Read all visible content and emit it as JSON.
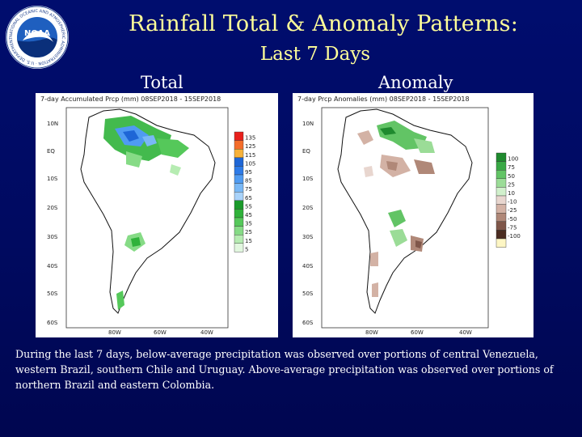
{
  "slide": {
    "title_line1": "Rainfall Total & Anomaly Patterns:",
    "title_line2": "Last 7 Days",
    "label_total": "Total",
    "label_anomaly": "Anomaly",
    "caption": "During the last 7 days, below-average precipitation was observed over portions of central Venezuela, western Brazil, southern Chile and Uruguay. Above-average precipitation was observed over portions of northern Brazil and eastern Colombia."
  },
  "logo": {
    "text": "NOAA",
    "ring_text": "NATIONAL OCEANIC AND ATMOSPHERIC ADMINISTRATION · U.S. DEPARTMENT OF COMMERCE"
  },
  "total_map": {
    "header": "7-day Accumulated Prcp (mm) 08SEP2018 - 15SEP2018",
    "lat_labels": [
      "10N",
      "EQ",
      "10S",
      "20S",
      "30S",
      "40S",
      "50S",
      "60S"
    ],
    "lon_labels": [
      "80W",
      "60W",
      "40W"
    ],
    "legend": [
      {
        "label": "135",
        "color": "#e8201c"
      },
      {
        "label": "125",
        "color": "#f46d2a"
      },
      {
        "label": "115",
        "color": "#f7b23b"
      },
      {
        "label": "105",
        "color": "#1e66d6"
      },
      {
        "label": "95",
        "color": "#2d7be8"
      },
      {
        "label": "85",
        "color": "#4f9bf2"
      },
      {
        "label": "75",
        "color": "#79b8f6"
      },
      {
        "label": "65",
        "color": "#a9d3fa"
      },
      {
        "label": "55",
        "color": "#1a9a2a"
      },
      {
        "label": "45",
        "color": "#2fb23a"
      },
      {
        "label": "35",
        "color": "#55c85a"
      },
      {
        "label": "25",
        "color": "#86db86"
      },
      {
        "label": "15",
        "color": "#b6ecb2"
      },
      {
        "label": "5",
        "color": "#e2f7df"
      }
    ]
  },
  "anomaly_map": {
    "header": "7-day Prcp Anomalies (mm) 08SEP2018 - 15SEP2018",
    "lat_labels": [
      "10N",
      "EQ",
      "10S",
      "20S",
      "30S",
      "40S",
      "50S",
      "60S"
    ],
    "lon_labels": [
      "80W",
      "60W",
      "40W"
    ],
    "legend": [
      {
        "label": "100",
        "color": "#1f8a2e"
      },
      {
        "label": "75",
        "color": "#38a945"
      },
      {
        "label": "50",
        "color": "#62c465"
      },
      {
        "label": "25",
        "color": "#9bdc97"
      },
      {
        "label": "10",
        "color": "#d1f0cc"
      },
      {
        "label": "-10",
        "color": "#e8d6cf"
      },
      {
        "label": "-25",
        "color": "#d3b2a5"
      },
      {
        "label": "-50",
        "color": "#b08878"
      },
      {
        "label": "-75",
        "color": "#80574a"
      },
      {
        "label": "-100",
        "color": "#4b2d22"
      },
      {
        "label": "",
        "color": "#fdf6c4"
      }
    ]
  }
}
